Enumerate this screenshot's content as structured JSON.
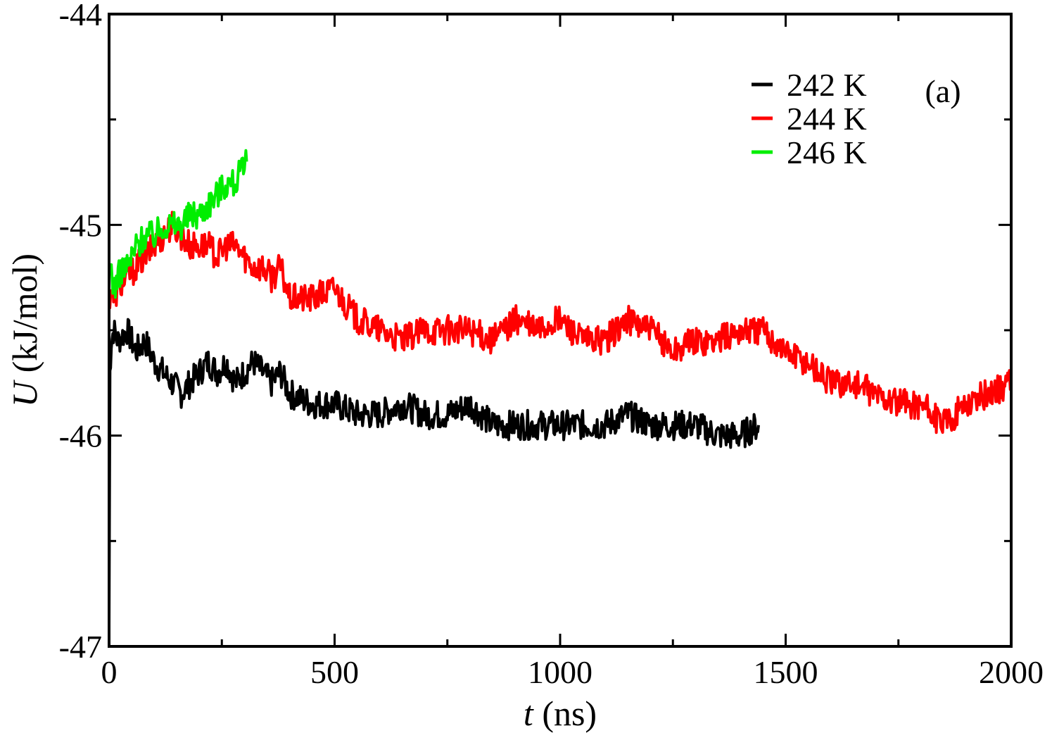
{
  "chart_data": {
    "type": "line",
    "title": "",
    "panel_label": "(a)",
    "xlabel": {
      "symbol": "t",
      "unit": " (ns)"
    },
    "ylabel": {
      "symbol": "U",
      "unit": " (kJ/mol)"
    },
    "xlim": [
      0,
      2000
    ],
    "ylim": [
      -47,
      -44
    ],
    "xticks_major": [
      0,
      500,
      1000,
      1500,
      2000
    ],
    "xticks_minor": [
      250,
      750,
      1250,
      1750
    ],
    "yticks_major": [
      -47,
      -46,
      -45,
      -44
    ],
    "yticks_minor": [
      -46.5,
      -45.5,
      -44.5
    ],
    "x_tick_labels": [
      "0",
      "500",
      "1000",
      "1500",
      "2000"
    ],
    "y_tick_labels": [
      "-47",
      "-46",
      "-45",
      "-44"
    ],
    "grid": false,
    "legend_position": "top-right",
    "series": [
      {
        "name": "242 K",
        "color": "#000000",
        "x": [
          0,
          2,
          5,
          10,
          20,
          40,
          60,
          80,
          100,
          120,
          140,
          160,
          180,
          200,
          220,
          240,
          260,
          280,
          300,
          320,
          340,
          360,
          380,
          400,
          450,
          500,
          550,
          600,
          650,
          700,
          750,
          800,
          850,
          900,
          950,
          1000,
          1050,
          1100,
          1150,
          1200,
          1250,
          1300,
          1350,
          1400,
          1440
        ],
        "y": [
          -46.9,
          -45.7,
          -45.55,
          -45.5,
          -45.55,
          -45.5,
          -45.6,
          -45.55,
          -45.65,
          -45.7,
          -45.75,
          -45.8,
          -45.75,
          -45.7,
          -45.65,
          -45.7,
          -45.65,
          -45.75,
          -45.7,
          -45.65,
          -45.7,
          -45.75,
          -45.7,
          -45.8,
          -45.85,
          -45.85,
          -45.9,
          -45.9,
          -45.85,
          -45.9,
          -45.9,
          -45.85,
          -45.95,
          -45.95,
          -45.95,
          -45.95,
          -45.95,
          -45.95,
          -45.9,
          -45.95,
          -45.95,
          -45.95,
          -46.0,
          -46.0,
          -45.95
        ]
      },
      {
        "name": "244 K",
        "color": "#ff0000",
        "x": [
          0,
          5,
          10,
          20,
          40,
          60,
          80,
          100,
          120,
          140,
          160,
          180,
          200,
          220,
          240,
          260,
          280,
          300,
          320,
          340,
          360,
          380,
          400,
          450,
          500,
          550,
          600,
          650,
          700,
          750,
          800,
          850,
          900,
          950,
          1000,
          1050,
          1100,
          1150,
          1200,
          1250,
          1300,
          1350,
          1400,
          1450,
          1500,
          1550,
          1600,
          1650,
          1700,
          1750,
          1800,
          1850,
          1900,
          1950,
          2000
        ],
        "y": [
          -45.35,
          -45.3,
          -45.35,
          -45.3,
          -45.25,
          -45.2,
          -45.15,
          -45.1,
          -45.05,
          -45.0,
          -45.05,
          -45.1,
          -45.1,
          -45.1,
          -45.15,
          -45.1,
          -45.1,
          -45.15,
          -45.2,
          -45.2,
          -45.25,
          -45.2,
          -45.35,
          -45.35,
          -45.3,
          -45.45,
          -45.5,
          -45.55,
          -45.5,
          -45.5,
          -45.5,
          -45.55,
          -45.45,
          -45.5,
          -45.45,
          -45.55,
          -45.55,
          -45.45,
          -45.5,
          -45.6,
          -45.55,
          -45.55,
          -45.5,
          -45.5,
          -45.6,
          -45.65,
          -45.75,
          -45.75,
          -45.8,
          -45.85,
          -45.85,
          -45.95,
          -45.85,
          -45.8,
          -45.75
        ]
      },
      {
        "name": "246 K",
        "color": "#00ee00",
        "x": [
          0,
          5,
          10,
          20,
          30,
          40,
          50,
          60,
          80,
          100,
          120,
          140,
          160,
          180,
          200,
          220,
          240,
          260,
          280,
          290,
          300,
          305
        ],
        "y": [
          -45.25,
          -45.2,
          -45.3,
          -45.25,
          -45.2,
          -45.2,
          -45.15,
          -45.1,
          -45.05,
          -45.05,
          -45.0,
          -45.0,
          -45.0,
          -44.95,
          -44.95,
          -44.9,
          -44.85,
          -44.8,
          -44.8,
          -44.75,
          -44.75,
          -44.7
        ]
      }
    ]
  }
}
